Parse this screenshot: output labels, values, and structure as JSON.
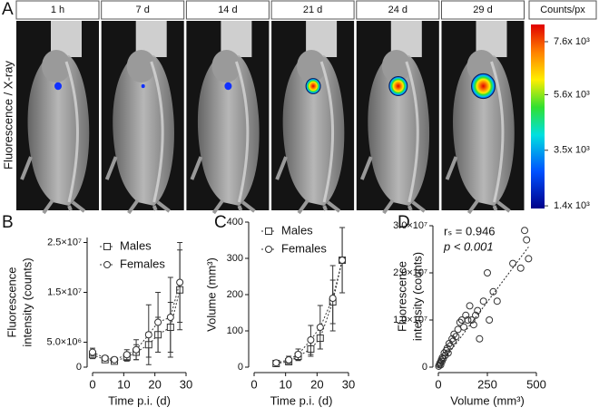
{
  "image_panel": {
    "panel": "A",
    "ylabel": "Fluorescence / X-ray",
    "time_labels": [
      "1 h",
      "7 d",
      "14 d",
      "21 d",
      "24 d",
      "29 d"
    ],
    "colorbar": {
      "label": "Counts/px",
      "lim": [
        1300,
        8250
      ],
      "ticks": [
        {
          "value": 7600,
          "label": "7.6x 10³"
        },
        {
          "value": 5600,
          "label": "5.6x 10³"
        },
        {
          "value": 3500,
          "label": "3.5x 10³"
        },
        {
          "value": 1400,
          "label": "1.4x 10³"
        }
      ]
    }
  },
  "chart_data": [
    {
      "type": "line",
      "panel": "B",
      "ylabel": [
        "Fluorescence",
        "intensity (counts)"
      ],
      "xlabel": "Time p.i. (d)",
      "x": [
        0,
        4,
        7,
        11,
        14,
        18,
        21,
        25,
        28
      ],
      "series": [
        {
          "name": "Males",
          "color": "#333333",
          "marker": "square",
          "values": [
            2500000,
            1500000,
            1200000,
            2000000,
            3000000,
            4500000,
            6500000,
            8000000,
            15500000
          ],
          "errors": [
            800000,
            500000,
            500000,
            800000,
            1500000,
            2500000,
            3500000,
            5000000,
            8000000
          ]
        },
        {
          "name": "Females",
          "color": "#333333",
          "marker": "circle",
          "values": [
            3000000,
            1800000,
            1500000,
            2500000,
            3500000,
            6500000,
            9000000,
            10000000,
            17000000
          ],
          "errors": [
            800000,
            500000,
            500000,
            1000000,
            2000000,
            6000000,
            6000000,
            8000000,
            8000000
          ]
        }
      ],
      "xlim": [
        0,
        30
      ],
      "xticks": [
        0,
        10,
        20,
        30
      ],
      "ylim": [
        0,
        26000000
      ],
      "yticks": [
        0,
        {
          "value": 5000000,
          "label": "5.0×10⁶"
        },
        {
          "value": 15000000,
          "label": "1.5×10⁷"
        },
        {
          "value": 25000000,
          "label": "2.5×10⁷"
        }
      ]
    },
    {
      "type": "line",
      "panel": "C",
      "ylabel": [
        "Volume (mm³)"
      ],
      "xlabel": "Time p.i. (d)",
      "x": [
        7,
        11,
        14,
        18,
        21,
        25,
        28
      ],
      "series": [
        {
          "name": "Males",
          "color": "#333333",
          "marker": "square",
          "values": [
            10,
            15,
            30,
            50,
            80,
            180,
            295
          ],
          "errors": [
            5,
            8,
            12,
            20,
            30,
            60,
            90
          ]
        },
        {
          "name": "Females",
          "color": "#333333",
          "marker": "circle",
          "values": [
            12,
            20,
            35,
            75,
            110,
            190,
            295
          ],
          "errors": [
            5,
            10,
            15,
            40,
            60,
            90,
            90
          ]
        }
      ],
      "xlim": [
        0,
        30
      ],
      "xticks": [
        0,
        10,
        20,
        30
      ],
      "ylim": [
        0,
        400
      ],
      "yticks": [
        0,
        100,
        200,
        300,
        400
      ]
    },
    {
      "type": "scatter",
      "panel": "D",
      "ylabel": [
        "Fluorescence",
        "intensity (counts)"
      ],
      "xlabel": "Volume (mm³)",
      "annotations": [
        "rₛ = 0.946",
        "p < 0.001"
      ],
      "x": [
        2,
        5,
        8,
        10,
        12,
        15,
        18,
        20,
        25,
        30,
        35,
        40,
        45,
        50,
        55,
        60,
        70,
        75,
        80,
        90,
        100,
        110,
        120,
        130,
        140,
        150,
        160,
        170,
        180,
        190,
        200,
        210,
        230,
        250,
        260,
        280,
        300,
        380,
        420,
        440,
        450,
        460
      ],
      "values": [
        200000,
        500000,
        800000,
        1000000,
        500000,
        1500000,
        1200000,
        2000000,
        1800000,
        3000000,
        2500000,
        3500000,
        4000000,
        3000000,
        5000000,
        4500000,
        6000000,
        5500000,
        7000000,
        6500000,
        8000000,
        9500000,
        10000000,
        8500000,
        11000000,
        10000000,
        13000000,
        10000000,
        9000000,
        11000000,
        12000000,
        6000000,
        14000000,
        20000000,
        10000000,
        16000000,
        14000000,
        22000000,
        21000000,
        29000000,
        27000000,
        23000000
      ],
      "color": "#333333",
      "fit": {
        "x": [
          0,
          460
        ],
        "y": [
          0,
          25500000
        ]
      },
      "xlim": [
        0,
        500
      ],
      "xticks": [
        0,
        250,
        500
      ],
      "ylim": [
        0,
        30000000
      ],
      "yticks": [
        0,
        {
          "value": 10000000,
          "label": "1.0×10⁷"
        },
        {
          "value": 20000000,
          "label": "2.0×10⁷"
        },
        {
          "value": 30000000,
          "label": "3.0×10⁷"
        }
      ]
    }
  ]
}
